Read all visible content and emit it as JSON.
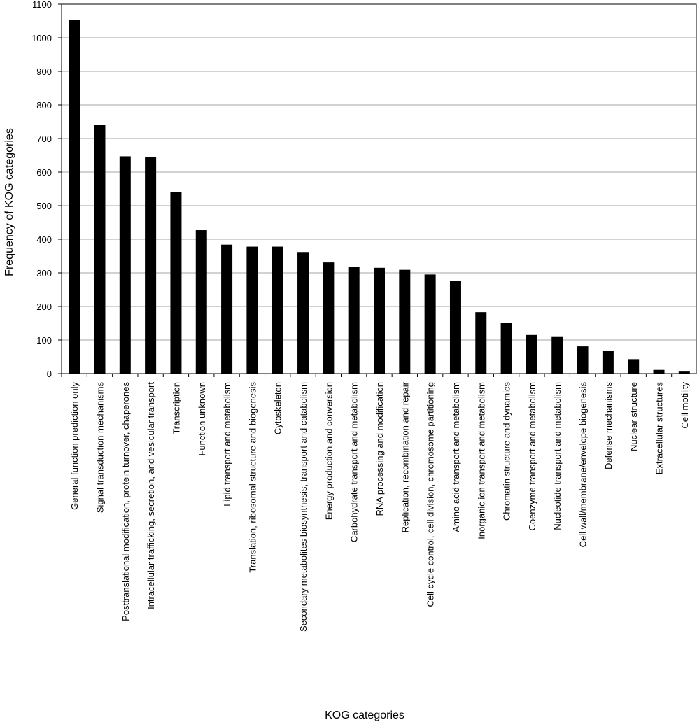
{
  "chart_data": {
    "type": "bar",
    "xlabel": "KOG categories",
    "ylabel": "Frequency of KOG categories",
    "ylim": [
      0,
      1100
    ],
    "ytick_step": 100,
    "grid": true,
    "legend": "none",
    "bar_color": "#000000",
    "grid_color": "#a6a6a6",
    "categories": [
      "General function prediction only",
      "Signal transduction mechanisms",
      "Posttranslational modification, protein turnover, chaperones",
      "Intracellular trafficking, secretion, and vesicular transport",
      "Transcription",
      "Function unknown",
      "Lipid transport and metabolism",
      "Translation, ribosomal structure and biogenesis",
      "Cytoskeleton",
      "Secondary metabolites biosynthesis, transport and catabolism",
      "Energy production and conversion",
      "Carbohydrate transport and metabolism",
      "RNA processing and modification",
      "Replication, recombination and repair",
      "Cell cycle control, cell division, chromosome partitioning",
      "Amino acid transport and metabolism",
      "Inorganic ion transport and metabolism",
      "Chromatin structure and dynamics",
      "Coenzyme transport and metabolism",
      "Nucleotide transport and metabolism",
      "Cell wall/membrane/envelope biogenesis",
      "Defense mechanisms",
      "Nuclear structure",
      "Extracellular structures",
      "Cell motility"
    ],
    "values": [
      1053,
      740,
      647,
      645,
      540,
      427,
      384,
      378,
      378,
      362,
      331,
      317,
      315,
      309,
      295,
      275,
      183,
      152,
      115,
      111,
      81,
      68,
      43,
      11,
      6
    ]
  }
}
